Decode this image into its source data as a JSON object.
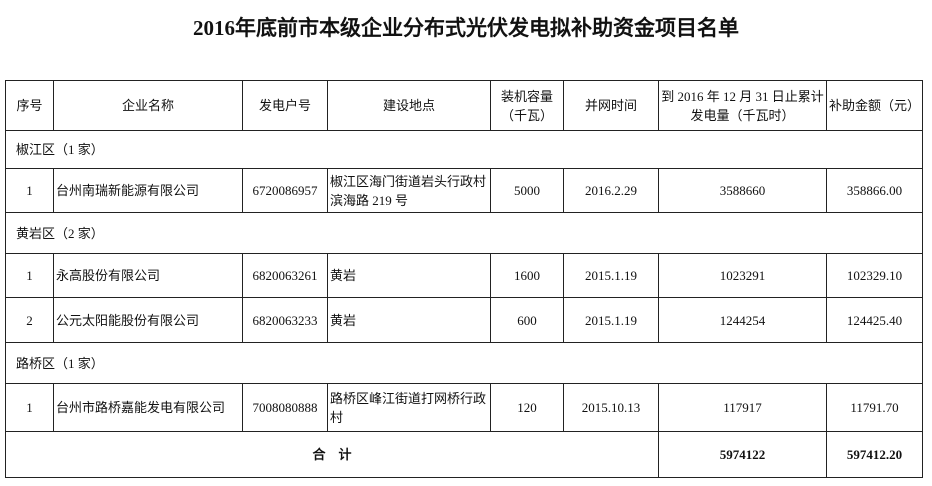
{
  "title": "2016年底前市本级企业分布式光伏发电拟补助资金项目名单",
  "headers": [
    "序号",
    "企业名称",
    "发电户号",
    "建设地点",
    "装机容量（千瓦）",
    "并网时间",
    "到 2016 年 12 月 31 日止累计发电量（千瓦时）",
    "补助金额（元）"
  ],
  "groups": [
    {
      "label": "椒江区（1 家）",
      "rows": [
        {
          "no": "1",
          "name": "台州南瑞新能源有限公司",
          "account": "6720086957",
          "location": "椒江区海门街道岩头行政村滨海路 219 号",
          "capacity": "5000",
          "date": "2016.2.29",
          "energy": "3588660",
          "subsidy": "358866.00"
        }
      ]
    },
    {
      "label": "黄岩区（2 家）",
      "rows": [
        {
          "no": "1",
          "name": "永高股份有限公司",
          "account": "6820063261",
          "location": "黄岩",
          "capacity": "1600",
          "date": "2015.1.19",
          "energy": "1023291",
          "subsidy": "102329.10"
        },
        {
          "no": "2",
          "name": "公元太阳能股份有限公司",
          "account": "6820063233",
          "location": "黄岩",
          "capacity": "600",
          "date": "2015.1.19",
          "energy": "1244254",
          "subsidy": "124425.40"
        }
      ]
    },
    {
      "label": "路桥区（1 家）",
      "rows": [
        {
          "no": "1",
          "name": "台州市路桥嘉能发电有限公司",
          "account": "7008080888",
          "location": "路桥区峰江街道打网桥行政村",
          "capacity": "120",
          "date": "2015.10.13",
          "energy": "117917",
          "subsidy": "11791.70"
        }
      ]
    }
  ],
  "total": {
    "label": "合　计",
    "energy": "5974122",
    "subsidy": "597412.20"
  }
}
